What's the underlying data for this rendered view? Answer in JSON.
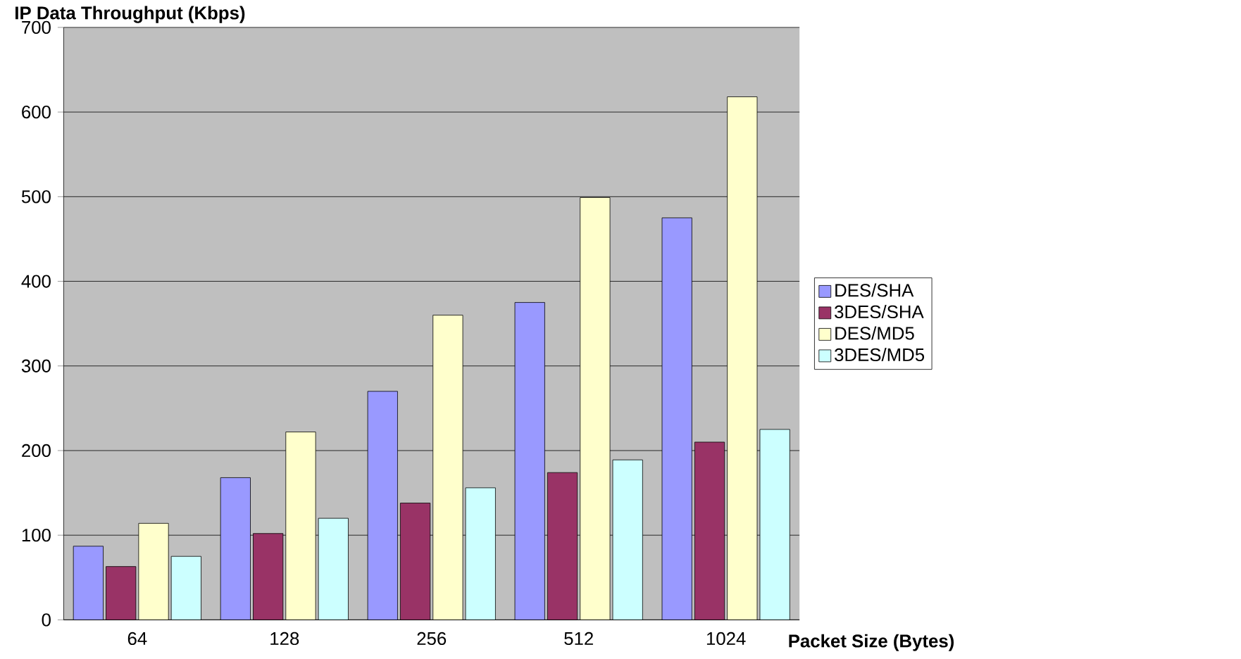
{
  "chart_data": {
    "type": "bar",
    "xlabel": "Packet Size (Bytes)",
    "ylabel": "IP Data Throughput (Kbps)",
    "categories": [
      "64",
      "128",
      "256",
      "512",
      "1024"
    ],
    "series": [
      {
        "name": "DES/SHA",
        "color": "#9999ff",
        "values": [
          87,
          168,
          270,
          375,
          475
        ]
      },
      {
        "name": "3DES/SHA",
        "color": "#993366",
        "values": [
          63,
          102,
          138,
          174,
          210
        ]
      },
      {
        "name": "DES/MD5",
        "color": "#ffffcc",
        "values": [
          114,
          222,
          360,
          499,
          618
        ]
      },
      {
        "name": "3DES/MD5",
        "color": "#ccffff",
        "values": [
          75,
          120,
          156,
          189,
          225
        ]
      }
    ],
    "ylim": [
      0,
      700
    ],
    "yticks": [
      0,
      100,
      200,
      300,
      400,
      500,
      600,
      700
    ],
    "grid": "y",
    "legend": "right"
  }
}
